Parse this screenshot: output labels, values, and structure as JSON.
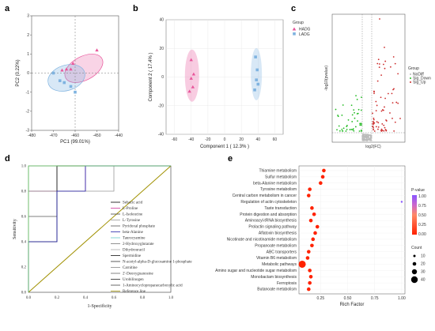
{
  "panels": {
    "a": "a",
    "b": "b",
    "c": "c",
    "d": "d",
    "e": "e"
  },
  "colors": {
    "hadg": "#e8559a",
    "ladg": "#7fb3e0",
    "up": "#cc2a2a",
    "down": "#22bb22",
    "nodiff": "#bbbbbb",
    "pval_low": "#ff2200",
    "pval_high": "#8855ff"
  },
  "chart_data": [
    {
      "id": "a",
      "type": "scatter",
      "xlabel": "PC1 (99.01%)",
      "ylabel": "PC2 (0.22%)",
      "xlim": [
        -480,
        -440
      ],
      "ylim": [
        -3,
        3
      ],
      "xticks": [
        "-480",
        "-470",
        "-460",
        "-450",
        "-440"
      ],
      "yticks": [
        "-3",
        "-2",
        "-1",
        "0",
        "1",
        "2",
        "3"
      ],
      "series": [
        {
          "name": "HADG",
          "points": [
            [
              -450,
              1.2
            ],
            [
              -461,
              0.5
            ],
            [
              -464,
              0.2
            ],
            [
              -466,
              0.15
            ],
            [
              -462,
              0.2
            ]
          ]
        },
        {
          "name": "LADG",
          "points": [
            [
              -470,
              0
            ],
            [
              -467,
              -0.4
            ],
            [
              -465,
              -0.5
            ],
            [
              -460,
              -1
            ],
            [
              -462,
              -0.7
            ]
          ]
        }
      ]
    },
    {
      "id": "b",
      "type": "scatter",
      "xlabel": "Component 1 ( 12.3% )",
      "ylabel": "Component 2 ( 17.4% )",
      "xlim": [
        -70,
        70
      ],
      "ylim": [
        -40,
        40
      ],
      "xticks": [
        "-60",
        "-40",
        "-20",
        "0",
        "20",
        "40",
        "60"
      ],
      "yticks": [
        "-40",
        "-20",
        "0",
        "20",
        "40"
      ],
      "legend_title": "Group",
      "series": [
        {
          "name": "HADG",
          "points": [
            [
              -40,
              12
            ],
            [
              -37,
              2
            ],
            [
              -40,
              -1
            ],
            [
              -38,
              -7
            ],
            [
              -42,
              -10
            ]
          ]
        },
        {
          "name": "LADG",
          "points": [
            [
              37,
              14
            ],
            [
              39,
              5
            ],
            [
              38,
              -2
            ],
            [
              40,
              -5
            ],
            [
              36,
              -9
            ]
          ]
        }
      ]
    },
    {
      "id": "c",
      "type": "scatter",
      "xlabel": "log2(FC)",
      "ylabel": "-log10(pvalue)",
      "legend_title": "Group",
      "series": [
        {
          "name": "NoDiff"
        },
        {
          "name": "Sig_Down"
        },
        {
          "name": "Sig_Up"
        }
      ]
    },
    {
      "id": "d",
      "type": "line",
      "xlabel": "1-Specificity",
      "ylabel": "Sensitivity",
      "xticks": [
        "0.0",
        "0.2",
        "0.4",
        "0.6",
        "0.8",
        "1.0"
      ],
      "yticks": [
        "0.0",
        "0.2",
        "0.4",
        "0.6",
        "0.8",
        "1.0"
      ],
      "legend": [
        "Sebacic acid",
        "L-Proline",
        "L-Isoleucine",
        "L-Tyrosine",
        "Pyridoxal phosphate",
        "beta-Alanine",
        "Taurocyamine",
        "2-Hydroxyglutarate",
        "Dihydrouracil",
        "Spermidine",
        "N-acetyl-alpha-D-glucosamine 1-phosphate",
        "Carnitine",
        "2'-Deoxyguanosine",
        "Urobilinogen",
        "1-Aminocyclopropanecarboxylic acid",
        "Reference line"
      ]
    },
    {
      "id": "e",
      "type": "scatter",
      "xlabel": "Rich Factor",
      "xticks": [
        "0.25",
        "0.50",
        "0.75",
        "1.00"
      ],
      "categories": [
        "Thiamine metabolism",
        "Sulfur metabolism",
        "beta-Alanine metabolism",
        "Tyrosine metabolism",
        "Central carbon metabolism in cancer",
        "Regulation of actin cytoskeleton",
        "Taste transduction",
        "Protein digestion and absorption",
        "Aminoacyl-tRNA biosynthesis",
        "Prolactin signaling pathway",
        "Aflatoxin biosynthesis",
        "Nicotinate and nicotinamide metabolism",
        "Propanoate metabolism",
        "ABC transporters",
        "Vitamin B6 metabolism",
        "Metabolic pathways",
        "Amino sugar and nucleotide sugar metabolism",
        "Monobactam biosynthesis",
        "Ferroptosis",
        "Butanoate metabolism"
      ],
      "rich_factor": [
        0.28,
        0.27,
        0.25,
        0.15,
        0.14,
        1.0,
        0.17,
        0.19,
        0.16,
        0.22,
        0.2,
        0.18,
        0.17,
        0.14,
        0.13,
        0.08,
        0.15,
        0.16,
        0.15,
        0.14
      ],
      "legend_pvalue": {
        "title": "P-value",
        "ticks": [
          "1.00",
          "0.75",
          "0.50",
          "0.25",
          "0.00"
        ]
      },
      "legend_count": {
        "title": "Count",
        "ticks": [
          "10",
          "20",
          "30",
          "40"
        ]
      }
    }
  ]
}
